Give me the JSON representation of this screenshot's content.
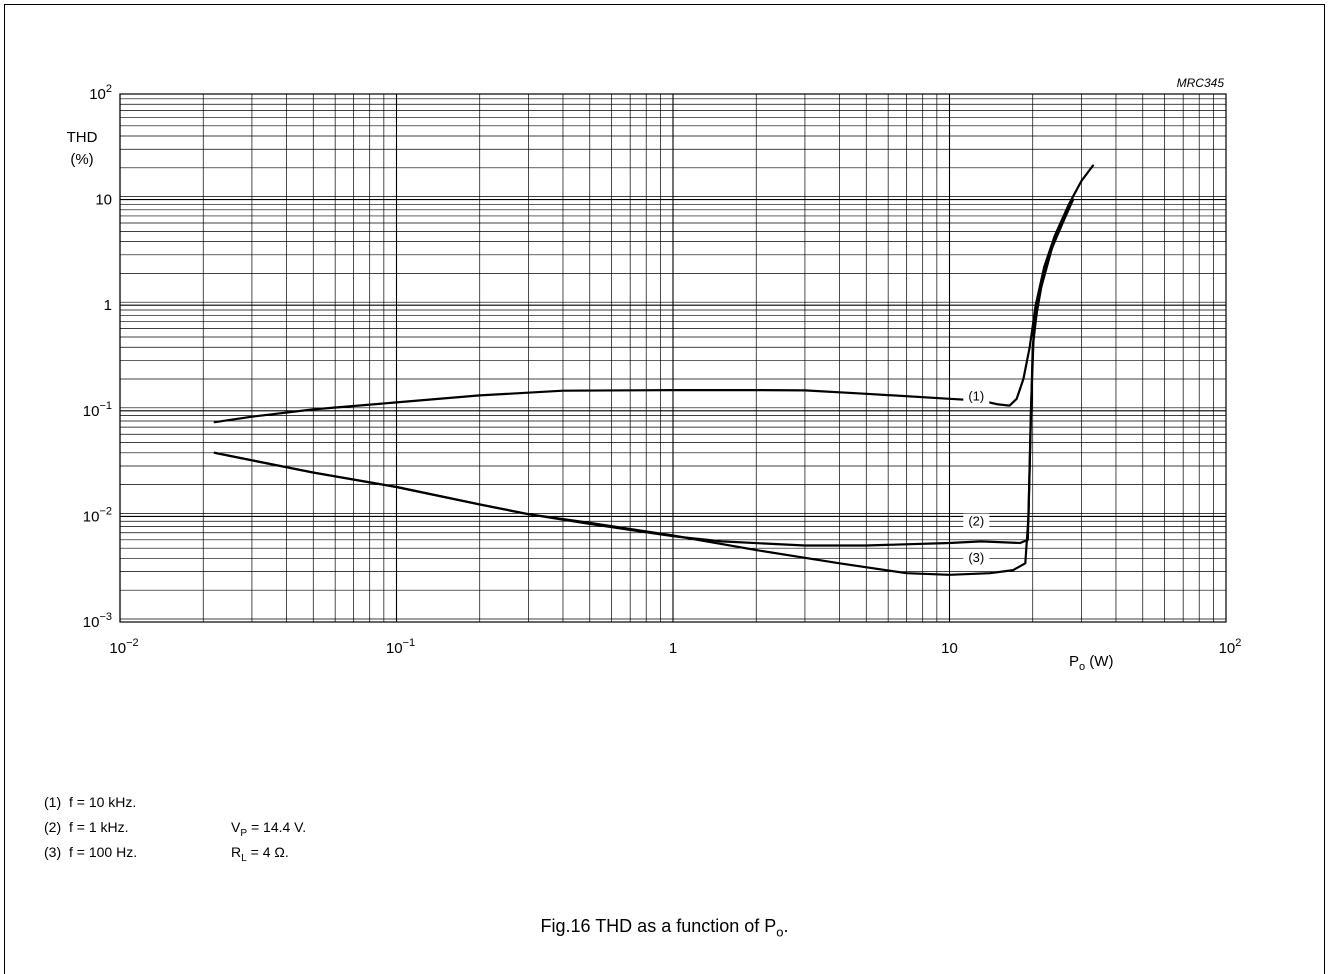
{
  "chart_data": {
    "type": "line",
    "code": "MRC345",
    "x_scale": "log",
    "y_scale": "log",
    "xlim": [
      0.01,
      100
    ],
    "ylim": [
      0.001,
      100
    ],
    "grid": true,
    "ylabel_main": "THD",
    "ylabel_unit": "(%)",
    "xlabel_main": "P",
    "xlabel_sub": "o",
    "xlabel_unit": " (W)",
    "x_ticks": [
      {
        "value": 0.01,
        "base": "10",
        "exp": "−2"
      },
      {
        "value": 0.1,
        "base": "10",
        "exp": "−1"
      },
      {
        "value": 1,
        "base": "1",
        "exp": ""
      },
      {
        "value": 10,
        "base": "10",
        "exp": ""
      },
      {
        "value": 100,
        "base": "10",
        "exp": "2"
      }
    ],
    "y_ticks": [
      {
        "value": 0.001,
        "base": "10",
        "exp": "−3"
      },
      {
        "value": 0.01,
        "base": "10",
        "exp": "−2"
      },
      {
        "value": 0.1,
        "base": "10",
        "exp": "−1"
      },
      {
        "value": 1,
        "base": "1",
        "exp": ""
      },
      {
        "value": 10,
        "base": "10",
        "exp": ""
      },
      {
        "value": 100,
        "base": "10",
        "exp": "2"
      }
    ],
    "series": [
      {
        "name": "(1)",
        "label_at": [
          12.5,
          0.125
        ],
        "points": [
          [
            0.022,
            0.078
          ],
          [
            0.03,
            0.088
          ],
          [
            0.05,
            0.103
          ],
          [
            0.1,
            0.12
          ],
          [
            0.2,
            0.14
          ],
          [
            0.4,
            0.155
          ],
          [
            1,
            0.157
          ],
          [
            2,
            0.157
          ],
          [
            3,
            0.156
          ],
          [
            5,
            0.145
          ],
          [
            10,
            0.13
          ],
          [
            13,
            0.125
          ],
          [
            15,
            0.115
          ],
          [
            16.5,
            0.112
          ],
          [
            17.5,
            0.13
          ],
          [
            18.5,
            0.2
          ],
          [
            19.5,
            0.4
          ],
          [
            20.5,
            1.0
          ],
          [
            22,
            2.3
          ],
          [
            24,
            4.5
          ],
          [
            27,
            9
          ],
          [
            30,
            15
          ],
          [
            33,
            21
          ]
        ]
      },
      {
        "name": "(2)",
        "label_at": [
          12.5,
          0.0082
        ],
        "points": [
          [
            0.022,
            0.04
          ],
          [
            0.03,
            0.034
          ],
          [
            0.05,
            0.026
          ],
          [
            0.1,
            0.019
          ],
          [
            0.2,
            0.013
          ],
          [
            0.3,
            0.0105
          ],
          [
            0.5,
            0.0085
          ],
          [
            1,
            0.0065
          ],
          [
            1.5,
            0.0058
          ],
          [
            3,
            0.0053
          ],
          [
            5,
            0.0053
          ],
          [
            10,
            0.0056
          ],
          [
            13,
            0.0058
          ],
          [
            18,
            0.0056
          ],
          [
            19.2,
            0.006
          ],
          [
            19.6,
            0.05
          ],
          [
            20,
            0.4
          ],
          [
            21,
            1.2
          ],
          [
            23,
            3.0
          ],
          [
            26,
            7.0
          ],
          [
            28,
            10
          ]
        ]
      },
      {
        "name": "(3)",
        "label_at": [
          12.5,
          0.0037
        ],
        "points": [
          [
            0.022,
            0.04
          ],
          [
            0.03,
            0.034
          ],
          [
            0.05,
            0.026
          ],
          [
            0.1,
            0.019
          ],
          [
            0.2,
            0.013
          ],
          [
            0.3,
            0.0105
          ],
          [
            0.5,
            0.0087
          ],
          [
            1,
            0.0066
          ],
          [
            2,
            0.0048
          ],
          [
            4,
            0.0036
          ],
          [
            7,
            0.0029
          ],
          [
            10,
            0.0028
          ],
          [
            14,
            0.0029
          ],
          [
            17,
            0.0031
          ],
          [
            18.8,
            0.0036
          ],
          [
            19.3,
            0.01
          ],
          [
            19.7,
            0.1
          ],
          [
            20.2,
            0.6
          ],
          [
            21.5,
            1.5
          ],
          [
            23.5,
            3.5
          ],
          [
            26,
            6.5
          ],
          [
            28,
            10
          ]
        ]
      }
    ]
  },
  "notes": [
    {
      "num": "(1)",
      "text": "f = 10 kHz.",
      "cond_main": "",
      "cond_sub": "",
      "cond_rest": ""
    },
    {
      "num": "(2)",
      "text": "f = 1 kHz.",
      "cond_main": "V",
      "cond_sub": "P",
      "cond_rest": " = 14.4 V."
    },
    {
      "num": "(3)",
      "text": "f = 100 Hz.",
      "cond_main": "R",
      "cond_sub": "L",
      "cond_rest": " = 4 Ω."
    }
  ],
  "caption": {
    "prefix": "Fig.16  THD as a function of P",
    "sub": "o",
    "suffix": "."
  }
}
